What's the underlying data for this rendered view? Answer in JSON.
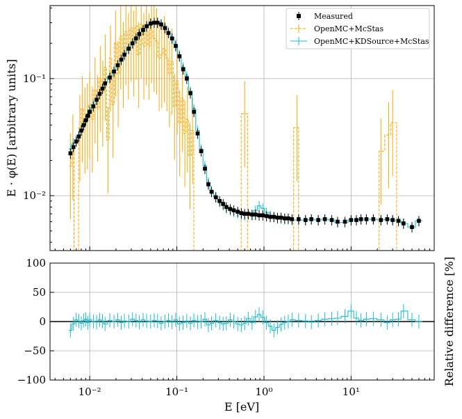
{
  "chart_data": [
    {
      "type": "step-errorbar",
      "panel": "main",
      "xscale": "log",
      "yscale": "log",
      "xlim": [
        0.0035,
        90
      ],
      "ylim": [
        0.0034,
        0.42
      ],
      "ylabel": "E · φ(E) [arbitrary units]",
      "xlabel": "",
      "grid": true,
      "legend_position": "top-right",
      "x_ticks": [
        "10⁻²",
        "10⁻¹",
        "10⁰",
        "10¹"
      ],
      "y_ticks": [
        "10⁻²",
        "10⁻¹"
      ],
      "series": [
        {
          "name": "Measured",
          "color": "#000000",
          "marker": "square",
          "x": [
            0.006,
            0.0065,
            0.007,
            0.0075,
            0.008,
            0.0085,
            0.009,
            0.0095,
            0.01,
            0.011,
            0.012,
            0.013,
            0.014,
            0.015,
            0.017,
            0.019,
            0.021,
            0.023,
            0.025,
            0.028,
            0.031,
            0.034,
            0.037,
            0.041,
            0.045,
            0.05,
            0.055,
            0.06,
            0.066,
            0.073,
            0.08,
            0.088,
            0.097,
            0.107,
            0.118,
            0.13,
            0.143,
            0.157,
            0.173,
            0.19,
            0.21,
            0.23,
            0.25,
            0.28,
            0.31,
            0.34,
            0.37,
            0.41,
            0.45,
            0.5,
            0.55,
            0.6,
            0.66,
            0.73,
            0.8,
            0.88,
            0.97,
            1.07,
            1.18,
            1.3,
            1.43,
            1.57,
            1.73,
            1.9,
            2.1,
            2.5,
            3.0,
            3.5,
            4.2,
            5.0,
            6.0,
            7.0,
            8.5,
            10,
            11.5,
            13,
            15,
            18,
            22,
            26,
            30,
            35,
            40,
            50,
            60
          ],
          "y": [
            0.023,
            0.026,
            0.029,
            0.032,
            0.036,
            0.04,
            0.044,
            0.048,
            0.052,
            0.058,
            0.066,
            0.074,
            0.082,
            0.091,
            0.102,
            0.115,
            0.13,
            0.145,
            0.16,
            0.18,
            0.2,
            0.22,
            0.24,
            0.26,
            0.28,
            0.295,
            0.3,
            0.3,
            0.29,
            0.27,
            0.245,
            0.22,
            0.19,
            0.155,
            0.12,
            0.1,
            0.075,
            0.052,
            0.034,
            0.024,
            0.017,
            0.0125,
            0.0108,
            0.0097,
            0.009,
            0.0085,
            0.008,
            0.0077,
            0.0075,
            0.0073,
            0.0071,
            0.007,
            0.007,
            0.0069,
            0.0069,
            0.0068,
            0.0068,
            0.0067,
            0.0066,
            0.0066,
            0.0065,
            0.0065,
            0.0064,
            0.0064,
            0.0063,
            0.0063,
            0.0062,
            0.0063,
            0.0062,
            0.0063,
            0.0062,
            0.006,
            0.006,
            0.0062,
            0.0062,
            0.0063,
            0.0063,
            0.0063,
            0.0062,
            0.0063,
            0.0062,
            0.0061,
            0.0058,
            0.0054,
            0.0061
          ]
        },
        {
          "name": "OpenMC+McStas",
          "color": "#ffa500",
          "style": "dashed-step",
          "x": [
            0.006,
            0.0064,
            0.0068,
            0.0072,
            0.0077,
            0.0082,
            0.0088,
            0.0094,
            0.01,
            0.0107,
            0.0115,
            0.0123,
            0.0132,
            0.0141,
            0.0151,
            0.0162,
            0.0173,
            0.0185,
            0.0198,
            0.0212,
            0.0227,
            0.0243,
            0.026,
            0.0278,
            0.0298,
            0.0319,
            0.0341,
            0.0365,
            0.039,
            0.0418,
            0.0447,
            0.0478,
            0.0512,
            0.0548,
            0.0586,
            0.0627,
            0.0671,
            0.0718,
            0.0769,
            0.0823,
            0.088,
            0.0942,
            0.1008,
            0.1079,
            0.1155,
            0.1236,
            0.1323,
            0.1416,
            0.1515,
            0.1621,
            0.2,
            0.3,
            0.5,
            0.6,
            0.7,
            1.0,
            2.0,
            2.4,
            2.6,
            3.0,
            10,
            20,
            22,
            27,
            30,
            37,
            50
          ],
          "y": [
            0.018,
            0.026,
            0.0032,
            0.0032,
            0.038,
            0.055,
            0.044,
            0.048,
            0.06,
            0.045,
            0.08,
            0.056,
            0.1,
            0.075,
            0.125,
            0.03,
            0.15,
            0.06,
            0.2,
            0.11,
            0.23,
            0.16,
            0.25,
            0.19,
            0.27,
            0.2,
            0.28,
            0.16,
            0.29,
            0.19,
            0.25,
            0.19,
            0.26,
            0.22,
            0.21,
            0.15,
            0.16,
            0.18,
            0.15,
            0.11,
            0.14,
            0.058,
            0.095,
            0.042,
            0.068,
            0.034,
            0.045,
            0.022,
            0.036,
            0.0032,
            0.0032,
            0.0032,
            0.0032,
            0.05,
            0.0032,
            0.0032,
            0.0032,
            0.038,
            0.0032,
            0.0032,
            0.0032,
            0.0032,
            0.024,
            0.033,
            0.042,
            0.0032,
            0.0032
          ]
        },
        {
          "name": "OpenMC+KDSource+McStas",
          "color": "#17becf",
          "style": "solid-step",
          "x": [
            0.006,
            0.0065,
            0.007,
            0.0075,
            0.008,
            0.0085,
            0.009,
            0.0095,
            0.01,
            0.011,
            0.012,
            0.013,
            0.014,
            0.015,
            0.017,
            0.019,
            0.021,
            0.023,
            0.025,
            0.028,
            0.031,
            0.034,
            0.037,
            0.041,
            0.045,
            0.05,
            0.055,
            0.06,
            0.066,
            0.073,
            0.08,
            0.088,
            0.097,
            0.107,
            0.118,
            0.13,
            0.143,
            0.157,
            0.173,
            0.19,
            0.21,
            0.23,
            0.25,
            0.28,
            0.31,
            0.34,
            0.37,
            0.41,
            0.45,
            0.5,
            0.55,
            0.6,
            0.66,
            0.73,
            0.8,
            0.88,
            0.97,
            1.07,
            1.18,
            1.3,
            1.43,
            1.57,
            1.73,
            1.9,
            2.1,
            2.5,
            3.0,
            3.5,
            4.2,
            5.0,
            6.0,
            7.0,
            8.5,
            10,
            11.5,
            13,
            15,
            18,
            22,
            26,
            30,
            35,
            40,
            50,
            60
          ],
          "y": [
            0.025,
            0.028,
            0.03,
            0.033,
            0.037,
            0.041,
            0.045,
            0.05,
            0.054,
            0.06,
            0.067,
            0.075,
            0.083,
            0.092,
            0.104,
            0.117,
            0.132,
            0.147,
            0.162,
            0.182,
            0.203,
            0.223,
            0.243,
            0.263,
            0.283,
            0.298,
            0.305,
            0.303,
            0.293,
            0.275,
            0.25,
            0.225,
            0.195,
            0.16,
            0.125,
            0.105,
            0.078,
            0.055,
            0.036,
            0.025,
            0.018,
            0.013,
            0.011,
            0.0098,
            0.0089,
            0.0083,
            0.0078,
            0.0075,
            0.0073,
            0.0071,
            0.0069,
            0.0068,
            0.0069,
            0.0068,
            0.0075,
            0.0082,
            0.0078,
            0.0072,
            0.0068,
            0.0066,
            0.0064,
            0.0064,
            0.0063,
            0.0063,
            0.0062,
            0.0062,
            0.0062,
            0.0063,
            0.0062,
            0.0063,
            0.0062,
            0.0059,
            0.0059,
            0.0062,
            0.0062,
            0.0063,
            0.0063,
            0.0063,
            0.0062,
            0.0063,
            0.0062,
            0.0061,
            0.0058,
            0.0054,
            0.0061
          ]
        }
      ]
    },
    {
      "type": "step-errorbar",
      "panel": "residual",
      "xscale": "log",
      "xlim": [
        0.0035,
        90
      ],
      "ylim": [
        -100,
        100
      ],
      "xlabel": "E [eV]",
      "ylabel": "Relative difference [%]",
      "grid": true,
      "x_ticks": [
        "10⁻²",
        "10⁻¹",
        "10⁰",
        "10¹"
      ],
      "y_ticks": [
        "100",
        "50",
        "0",
        "−50",
        "−100"
      ],
      "y_tick_values": [
        100,
        50,
        0,
        -50,
        -100
      ],
      "reference_line": 0,
      "series": [
        {
          "name": "OpenMC+KDSource+McStas",
          "color": "#17becf",
          "x": [
            0.006,
            0.0065,
            0.007,
            0.0075,
            0.008,
            0.0085,
            0.009,
            0.0095,
            0.01,
            0.011,
            0.012,
            0.013,
            0.014,
            0.015,
            0.017,
            0.019,
            0.021,
            0.023,
            0.025,
            0.028,
            0.031,
            0.034,
            0.037,
            0.041,
            0.045,
            0.05,
            0.055,
            0.06,
            0.066,
            0.073,
            0.08,
            0.088,
            0.097,
            0.107,
            0.118,
            0.13,
            0.143,
            0.157,
            0.173,
            0.19,
            0.21,
            0.23,
            0.25,
            0.28,
            0.31,
            0.34,
            0.37,
            0.41,
            0.45,
            0.5,
            0.55,
            0.6,
            0.66,
            0.73,
            0.8,
            0.88,
            0.97,
            1.07,
            1.18,
            1.3,
            1.43,
            1.57,
            1.73,
            1.9,
            2.1,
            2.5,
            3.0,
            3.5,
            4.2,
            5.0,
            6.0,
            7.0,
            8.5,
            10,
            11.5,
            13,
            15,
            18,
            22,
            26,
            30,
            35,
            40,
            50,
            60
          ],
          "y": [
            -15,
            -4,
            3,
            1,
            -3,
            2,
            4,
            -2,
            3,
            0,
            -1,
            3,
            1,
            -4,
            2,
            0,
            3,
            -2,
            1,
            0,
            4,
            2,
            -1,
            3,
            1,
            0,
            2,
            1,
            -3,
            0,
            2,
            -1,
            3,
            -4,
            -2,
            1,
            -3,
            2,
            -1,
            0,
            4,
            -6,
            -3,
            2,
            -2,
            -4,
            -3,
            3,
            0,
            -4,
            -6,
            -3,
            5,
            -2,
            8,
            12,
            7,
            -2,
            -8,
            -15,
            -10,
            -5,
            -2,
            0,
            3,
            2,
            1,
            -1,
            2,
            4,
            5,
            6,
            9,
            18,
            6,
            2,
            4,
            5,
            3,
            -2,
            3,
            4,
            18,
            3,
            0
          ]
        }
      ]
    }
  ]
}
